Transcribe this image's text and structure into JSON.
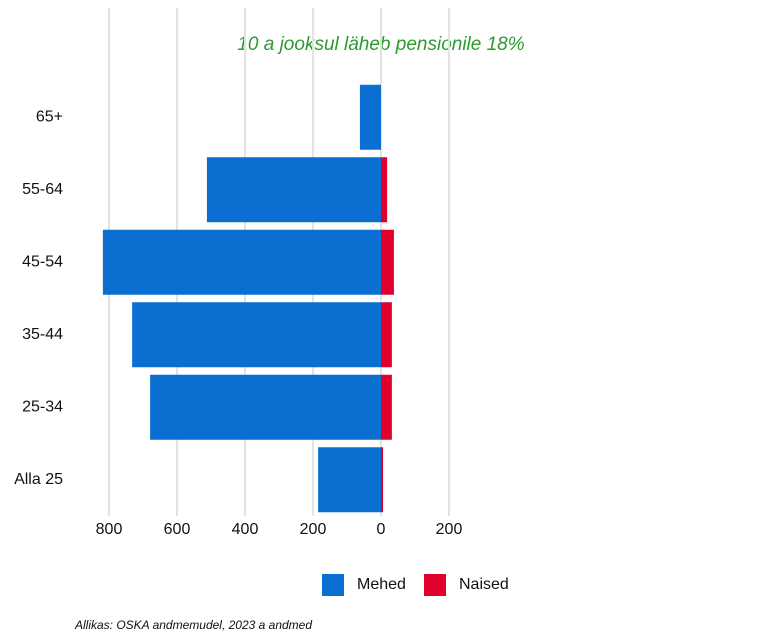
{
  "chart_data": {
    "type": "bar",
    "orientation": "horizontal",
    "title": "10 a jooksul läheb pensionile 18%",
    "categories": [
      "65+",
      "55-64",
      "45-54",
      "35-44",
      "25-34",
      "Alla 25"
    ],
    "series": [
      {
        "name": "Mehed",
        "color": "#0a6fd0",
        "values": [
          -62,
          -512,
          -818,
          -732,
          -679,
          -185
        ]
      },
      {
        "name": "Naised",
        "color": "#e0002b",
        "values": [
          0,
          18,
          38,
          32,
          32,
          6
        ]
      }
    ],
    "xlim": [
      -830,
      230
    ],
    "xticks": [
      {
        "value": -800,
        "label": "800"
      },
      {
        "value": -600,
        "label": "600"
      },
      {
        "value": -400,
        "label": "400"
      },
      {
        "value": -200,
        "label": "200"
      },
      0,
      200
    ],
    "grid": true,
    "legend": "bottom",
    "source": "Allikas: OSKA andmemudel, 2023 a andmed"
  }
}
